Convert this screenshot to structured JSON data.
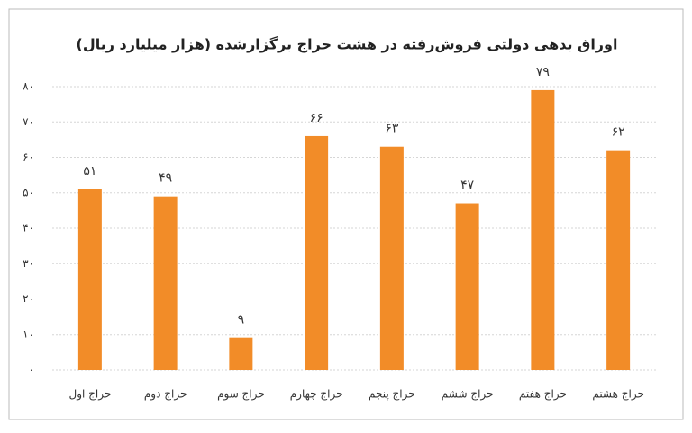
{
  "chart_data": {
    "type": "bar",
    "title": "اوراق بدهی دولتی فروش‌رفته در هشت حراج برگزارشده (هزار میلیارد ریال)",
    "categories": [
      "حراج اول",
      "حراج دوم",
      "حراج سوم",
      "حراج چهارم",
      "حراج پنجم",
      "حراج ششم",
      "حراج هفتم",
      "حراج هشتم"
    ],
    "values": [
      51,
      49,
      9,
      66,
      63,
      47,
      79,
      62
    ],
    "value_labels": [
      "۵۱",
      "۴۹",
      "۹",
      "۶۶",
      "۶۳",
      "۴۷",
      "۷۹",
      "۶۲"
    ],
    "color": "#f28c28",
    "ylim": [
      0,
      80
    ],
    "yticks": [
      {
        "value": 0,
        "label": "۰"
      },
      {
        "value": 10,
        "label": "۱۰"
      },
      {
        "value": 20,
        "label": "۲۰"
      },
      {
        "value": 30,
        "label": "۳۰"
      },
      {
        "value": 40,
        "label": "۴۰"
      },
      {
        "value": 50,
        "label": "۵۰"
      },
      {
        "value": 60,
        "label": "۶۰"
      },
      {
        "value": 70,
        "label": "۷۰"
      },
      {
        "value": 80,
        "label": "۸۰"
      }
    ],
    "grid": true
  }
}
